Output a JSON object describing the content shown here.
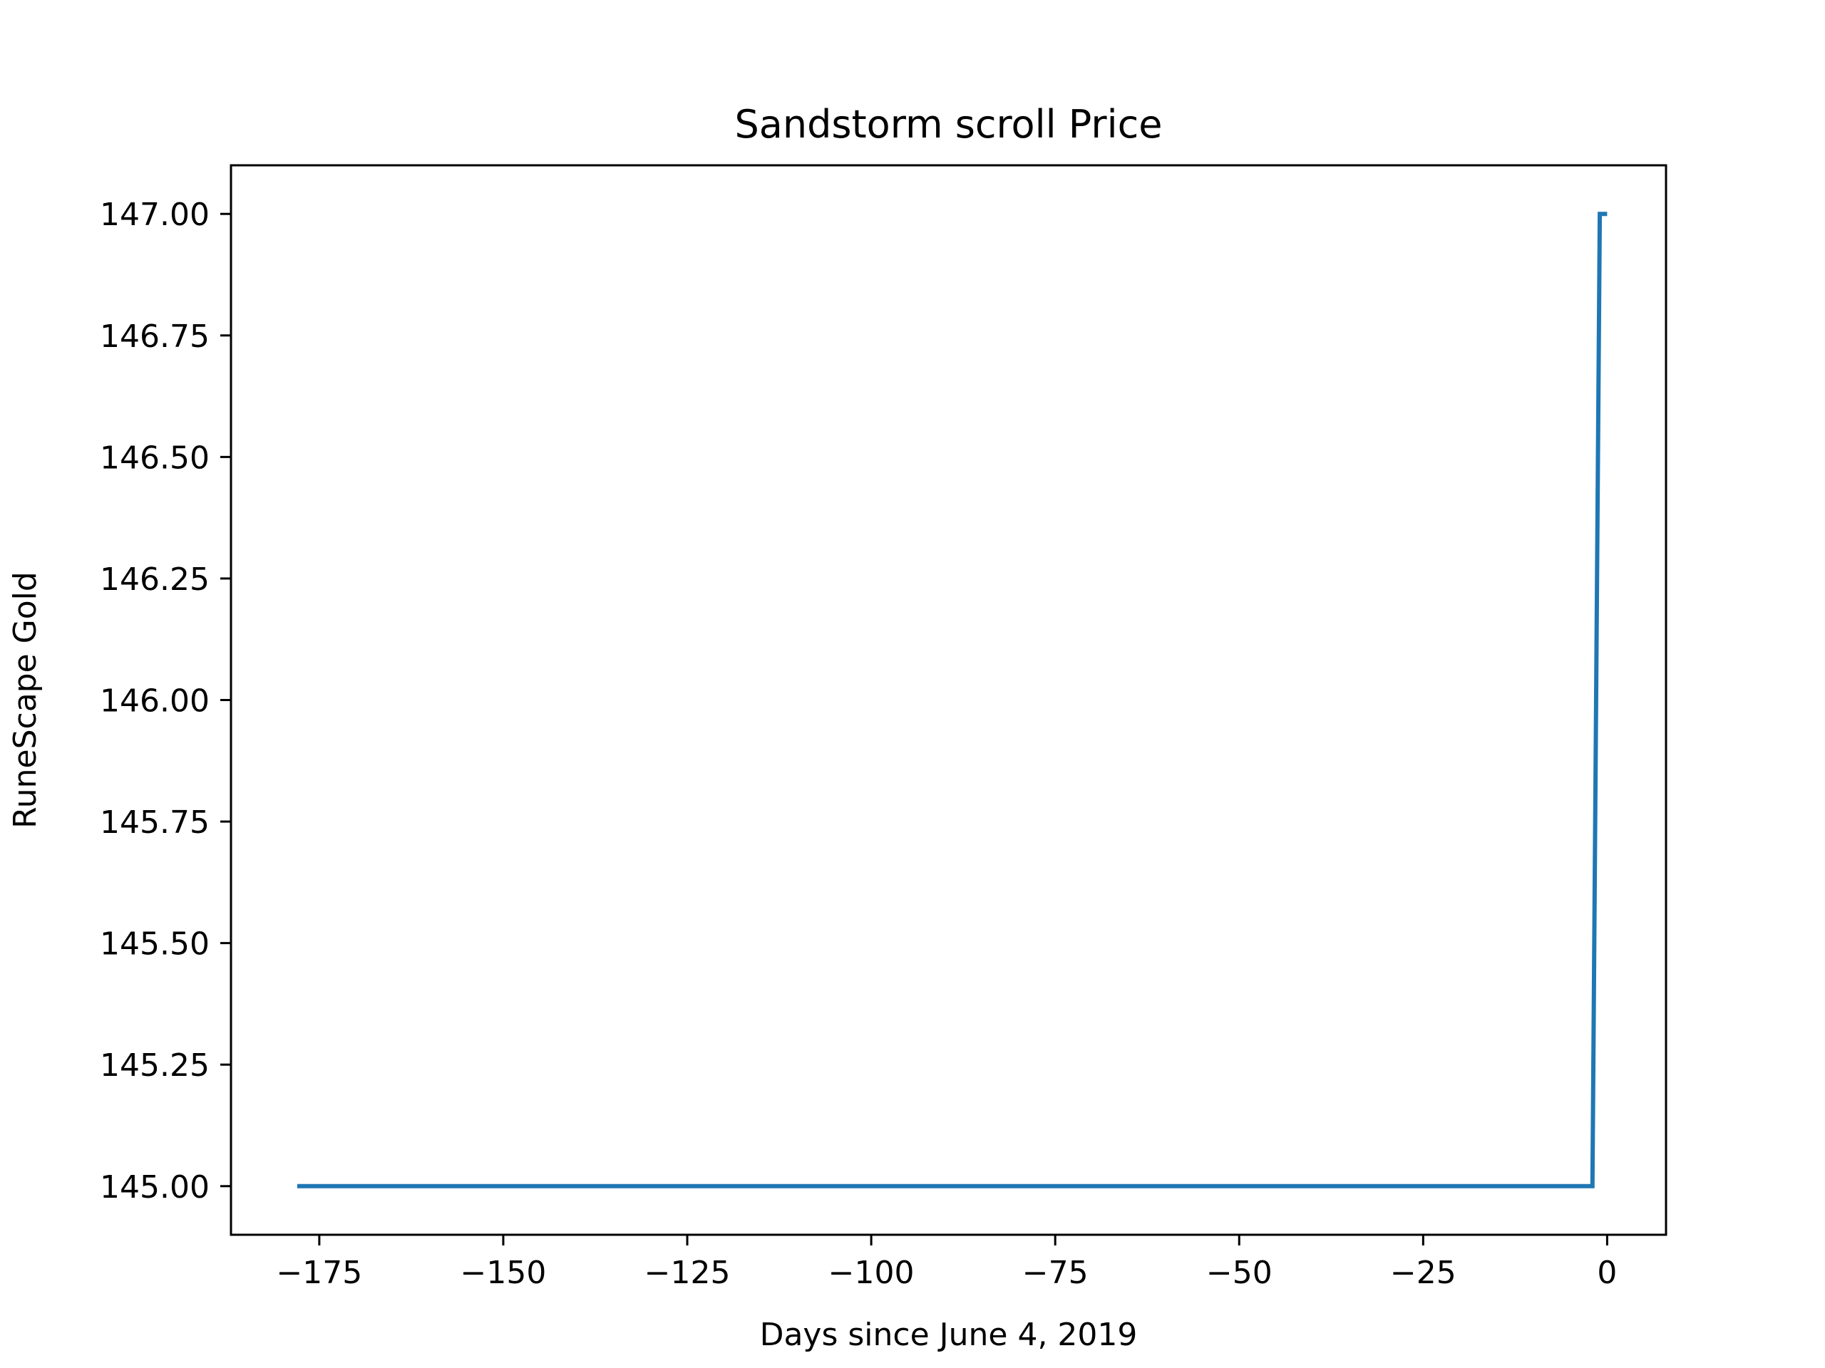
{
  "chart_data": {
    "type": "line",
    "title": "Sandstorm scroll Price",
    "xlabel": "Days since June 4, 2019",
    "ylabel": "RuneScape Gold",
    "xlim": [
      -187,
      8
    ],
    "ylim": [
      144.9,
      147.1
    ],
    "xticks": [
      -175,
      -150,
      -125,
      -100,
      -75,
      -50,
      -25,
      0
    ],
    "xtick_labels": [
      "−175",
      "−150",
      "−125",
      "−100",
      "−75",
      "−50",
      "−25",
      "0"
    ],
    "yticks": [
      145.0,
      145.25,
      145.5,
      145.75,
      146.0,
      146.25,
      146.5,
      146.75,
      147.0
    ],
    "ytick_labels": [
      "145.00",
      "145.25",
      "145.50",
      "145.75",
      "146.00",
      "146.25",
      "146.50",
      "146.75",
      "147.00"
    ],
    "grid": false,
    "legend": "none",
    "series": [
      {
        "color": "#1f77b4",
        "points": [
          {
            "x": -178,
            "y": 145.0
          },
          {
            "x": -2,
            "y": 145.0
          },
          {
            "x": -1,
            "y": 147.0
          },
          {
            "x": 0,
            "y": 147.0
          }
        ]
      }
    ]
  }
}
